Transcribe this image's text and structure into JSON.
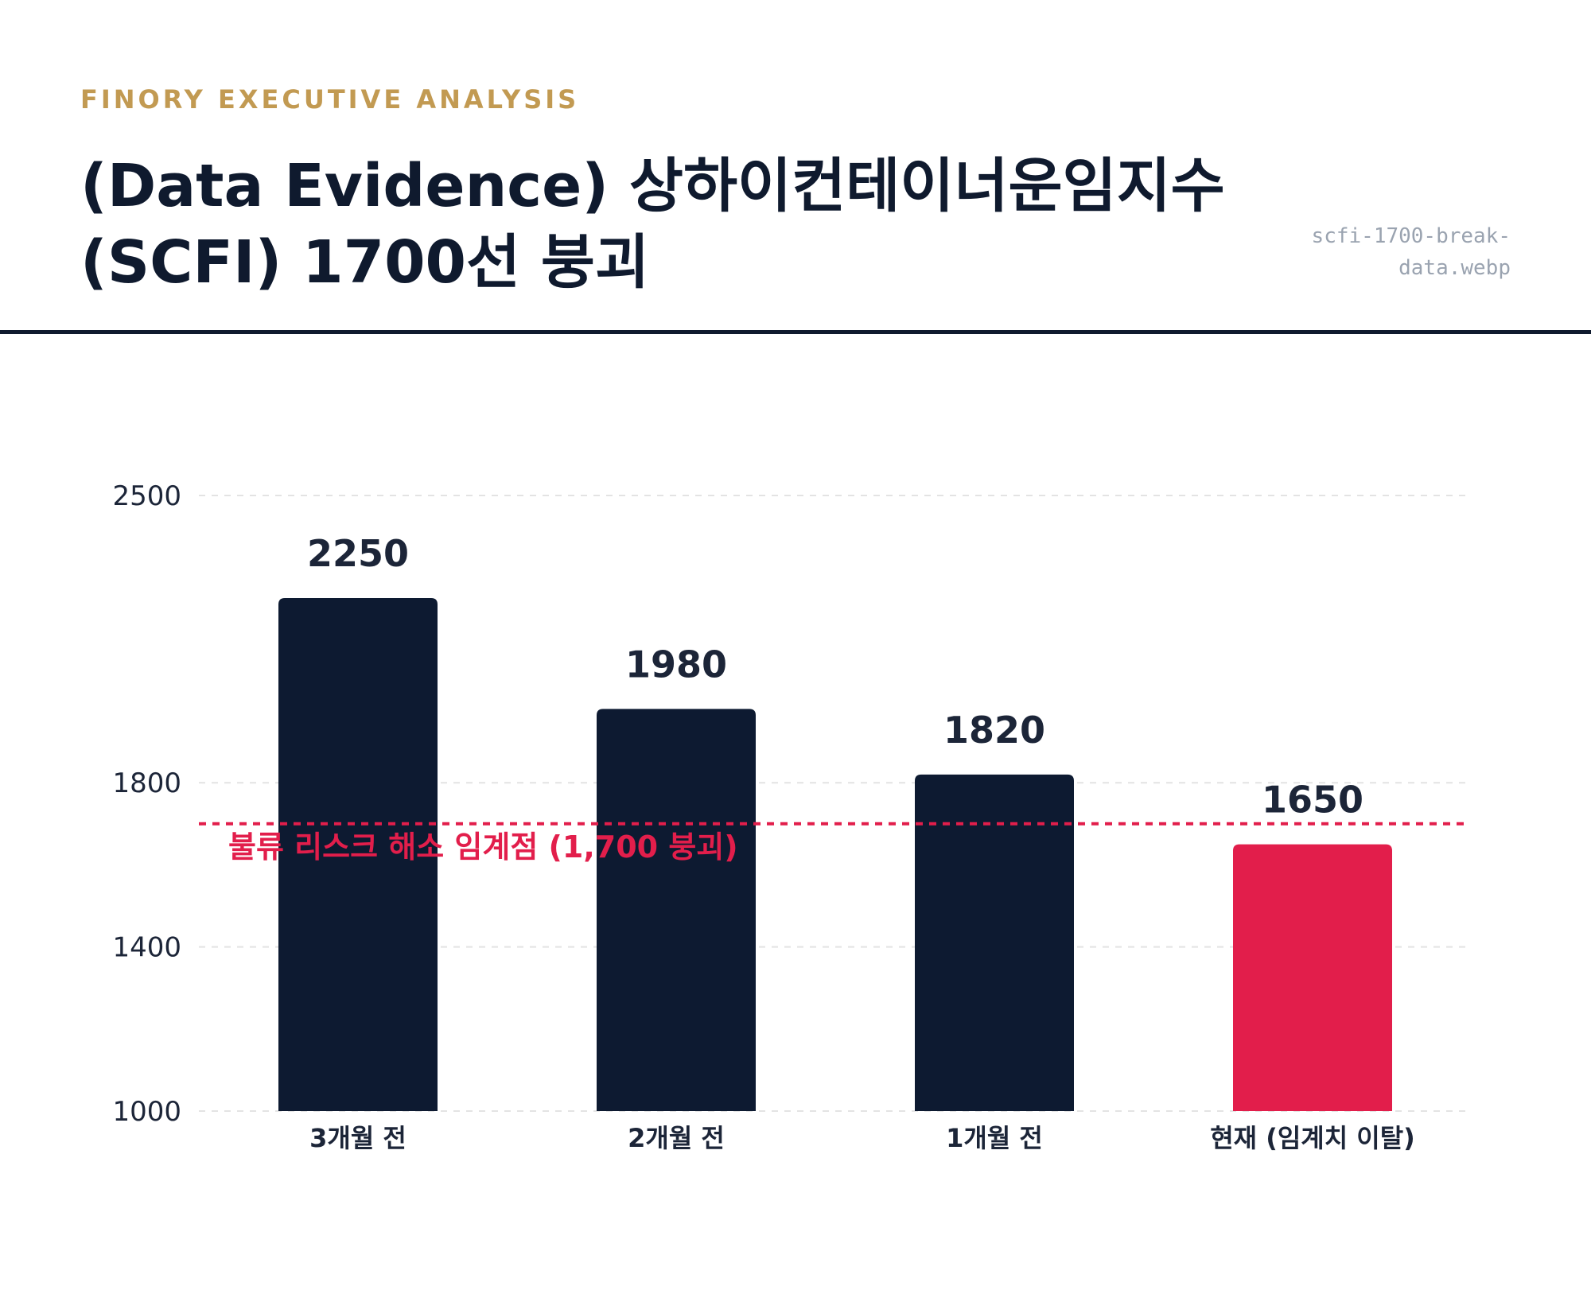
{
  "header": {
    "kicker": "FINORY EXECUTIVE ANALYSIS",
    "title_line1": "(Data Evidence) 상하이컨테이너운임지수",
    "title_line2": "(SCFI) 1700선 붕괴",
    "filename_line1": "scfi-1700-break-",
    "filename_line2": "data.webp"
  },
  "colors": {
    "bar": "#0d1a31",
    "highlight": "#e21e4b",
    "accent": "#c29a52",
    "grid": "#e3e3e3"
  },
  "chart_data": {
    "type": "bar",
    "categories": [
      "3개월 전",
      "2개월 전",
      "1개월 전",
      "현재 (임계치 이탈)"
    ],
    "values": [
      2250,
      1980,
      1820,
      1650
    ],
    "value_labels": [
      "2250",
      "1980",
      "1820",
      "1650"
    ],
    "highlight_index": 3,
    "ylim": [
      1000,
      2500
    ],
    "yticks": [
      1000,
      1400,
      1800,
      2500
    ],
    "ytick_labels": [
      "1000",
      "1400",
      "1800",
      "2500"
    ],
    "grid": true,
    "reference_line": {
      "value": 1700,
      "label": "불류 리스크 해소 임계점 (1,700 붕괴)"
    }
  }
}
